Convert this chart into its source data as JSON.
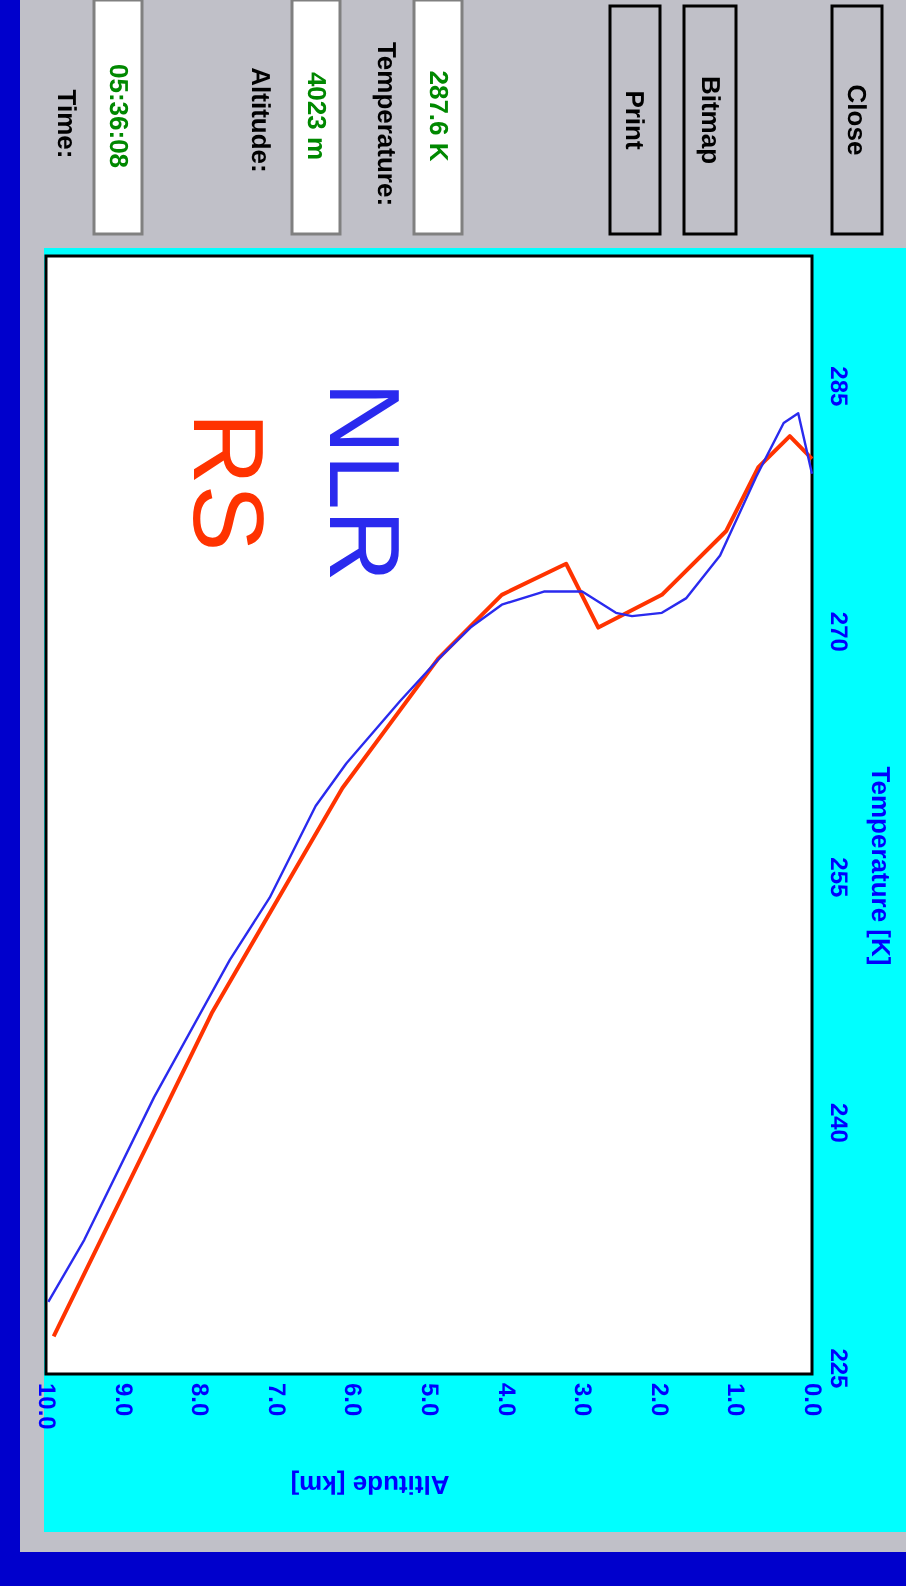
{
  "chart_data": {
    "type": "line",
    "xlabel": "Altitude [km]",
    "ylabel": "Temperature [K]",
    "xlim": [
      10.0,
      0.0
    ],
    "xticks": [
      {
        "value": 10,
        "label": "10.0"
      },
      {
        "value": 9,
        "label": "9.0"
      },
      {
        "value": 8,
        "label": "8.0"
      },
      {
        "value": 7,
        "label": "7.0"
      },
      {
        "value": 6,
        "label": "6.0"
      },
      {
        "value": 5,
        "label": "5.0"
      },
      {
        "value": 4,
        "label": "4.0"
      },
      {
        "value": 3,
        "label": "3.0"
      },
      {
        "value": 2,
        "label": "2.0"
      },
      {
        "value": 1,
        "label": "1.0"
      },
      {
        "value": 0,
        "label": "0.0"
      }
    ],
    "ylim": [
      224.6,
      292.9
    ],
    "yticks": [
      225,
      240,
      255,
      270,
      285
    ],
    "grid": false,
    "legend": false,
    "series": [
      {
        "name": "RS",
        "color": "#ff3300",
        "x": [
          9.9,
          7.83,
          6.13,
          4.88,
          4.05,
          3.21,
          2.79,
          1.96,
          1.12,
          0.7,
          0.29,
          0.0
        ],
        "values": [
          226.9,
          246.7,
          260.4,
          268.3,
          272.2,
          274.1,
          270.2,
          272.2,
          276.1,
          280.0,
          281.9,
          280.5
        ]
      },
      {
        "name": "NLR",
        "color": "#2a2aee",
        "x": [
          9.97,
          9.5,
          8.59,
          7.6,
          7.08,
          6.48,
          6.08,
          5.38,
          4.83,
          4.46,
          4.05,
          3.5,
          3.0,
          2.56,
          2.35,
          1.96,
          1.64,
          1.2,
          0.73,
          0.37,
          0.18,
          0.0
        ],
        "values": [
          229.0,
          232.8,
          241.5,
          249.9,
          253.7,
          259.3,
          261.9,
          265.7,
          268.5,
          270.2,
          271.6,
          272.4,
          272.4,
          271.1,
          270.9,
          271.1,
          272.0,
          274.6,
          279.4,
          282.7,
          283.3,
          279.6
        ]
      }
    ],
    "annotations": [
      "Time:",
      "05:36:08",
      "Altitude:",
      "4023 m",
      "Temperature:",
      "287.6 K",
      "Print",
      "Bitmap",
      "Close"
    ]
  }
}
